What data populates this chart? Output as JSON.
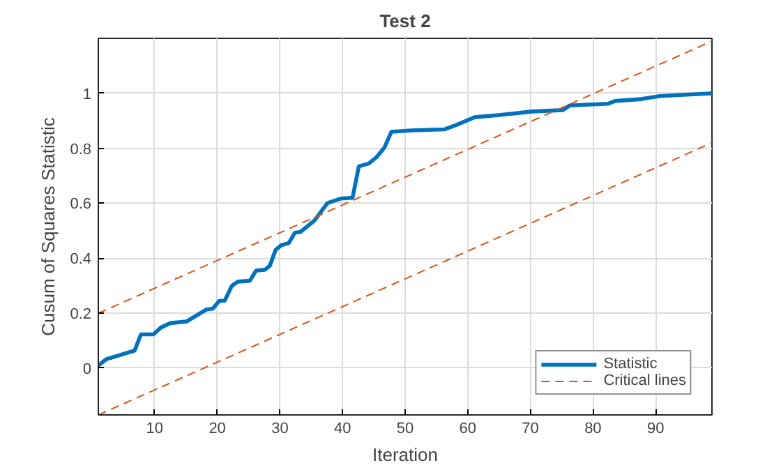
{
  "chart_data": {
    "type": "line",
    "title": "Test 2",
    "xlabel": "Iteration",
    "ylabel": "Cusum of Squares Statistic",
    "xlim": [
      1,
      99
    ],
    "ylim": [
      -0.17,
      1.2
    ],
    "xticks": [
      10,
      20,
      30,
      40,
      50,
      60,
      70,
      80,
      90
    ],
    "yticks": [
      0,
      0.2,
      0.4,
      0.6,
      0.8,
      1
    ],
    "grid": true,
    "legend": "bottom right",
    "marker": "none",
    "series": [
      {
        "name": "Statistic",
        "color": "#0072bd",
        "line_style": "solid",
        "x": [
          1,
          2.3,
          6.8,
          7.8,
          9.8,
          11,
          12.5,
          15.1,
          18.2,
          19.3,
          20.3,
          21.2,
          22.3,
          23.3,
          25.2,
          26.2,
          27.6,
          28.4,
          29.3,
          30.2,
          31.4,
          32.4,
          33.3,
          35.5,
          37.6,
          39.7,
          41.6,
          42.6,
          44.2,
          45.4,
          46.7,
          47.8,
          51,
          56.3,
          58.2,
          61.1,
          65,
          70.3,
          75.2,
          76.3,
          82.4,
          83.5,
          87.7,
          90.7,
          99
        ],
        "values": [
          0.01,
          0.033,
          0.064,
          0.123,
          0.123,
          0.148,
          0.164,
          0.17,
          0.213,
          0.217,
          0.245,
          0.246,
          0.299,
          0.315,
          0.318,
          0.355,
          0.358,
          0.373,
          0.43,
          0.447,
          0.455,
          0.493,
          0.496,
          0.537,
          0.601,
          0.617,
          0.62,
          0.734,
          0.745,
          0.767,
          0.803,
          0.86,
          0.865,
          0.869,
          0.885,
          0.913,
          0.921,
          0.934,
          0.939,
          0.956,
          0.962,
          0.972,
          0.979,
          0.99,
          1.0
        ]
      },
      {
        "name": "Critical lines",
        "color": "#d95319",
        "line_style": "dashed",
        "x": [
          1,
          99
        ],
        "values": [
          0.2,
          1.19
        ]
      },
      {
        "color": "#d95319",
        "line_style": "dashed",
        "x": [
          1,
          99
        ],
        "values": [
          -0.17,
          0.82
        ]
      }
    ]
  }
}
